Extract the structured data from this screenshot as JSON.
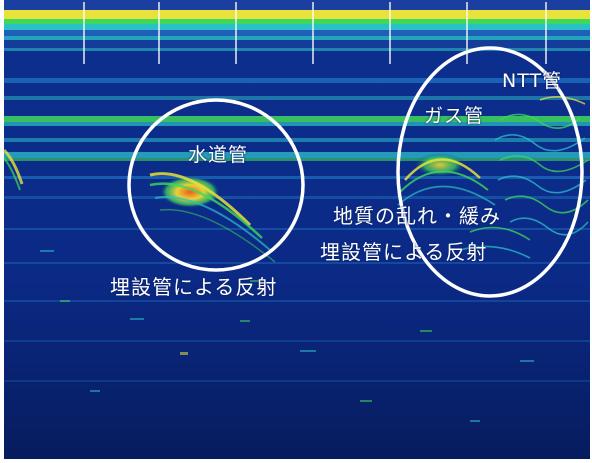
{
  "image": {
    "kind": "ground-penetrating-radar-profile",
    "palette": {
      "background": "#0b2a86",
      "deep": "#08206a",
      "band_cyan": "#2bc0c8",
      "band_green": "#3fd95a",
      "band_yellow": "#e8e23a",
      "hot_orange": "#f07020",
      "marker_line": "#ffffff",
      "circle": "#ffffff"
    }
  },
  "annotations": {
    "water_pipe": "水道管",
    "ntt_pipe": "NTT管",
    "gas_pipe": "ガス管",
    "soil_disturbance": "地質の乱れ・緩み",
    "buried_pipe_reflection_right": "埋設管による反射",
    "buried_pipe_reflection_left": "埋設管による反射"
  }
}
